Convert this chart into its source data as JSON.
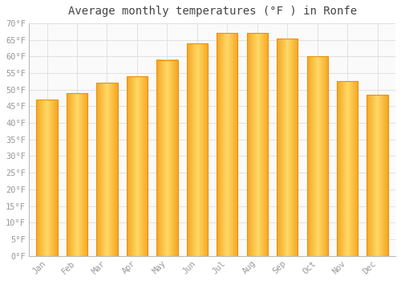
{
  "title": "Average monthly temperatures (°F ) in Ronfe",
  "months": [
    "Jan",
    "Feb",
    "Mar",
    "Apr",
    "May",
    "Jun",
    "Jul",
    "Aug",
    "Sep",
    "Oct",
    "Nov",
    "Dec"
  ],
  "values": [
    47,
    49,
    52,
    54,
    59,
    64,
    67,
    67,
    65.5,
    60,
    52.5,
    48.5
  ],
  "bar_color_left": "#F5A623",
  "bar_color_center": "#FFD966",
  "bar_color_right": "#F5A623",
  "bar_edge_color": "#E8920A",
  "background_color": "#FFFFFF",
  "plot_bg_color": "#FAFAFA",
  "grid_color": "#DDDDDD",
  "tick_label_color": "#999999",
  "title_color": "#444444",
  "ylim": [
    0,
    70
  ],
  "yticks": [
    0,
    5,
    10,
    15,
    20,
    25,
    30,
    35,
    40,
    45,
    50,
    55,
    60,
    65,
    70
  ],
  "ytick_labels": [
    "0°F",
    "5°F",
    "10°F",
    "15°F",
    "20°F",
    "25°F",
    "30°F",
    "35°F",
    "40°F",
    "45°F",
    "50°F",
    "55°F",
    "60°F",
    "65°F",
    "70°F"
  ],
  "title_fontsize": 10,
  "tick_fontsize": 7.5,
  "bar_width": 0.7,
  "figsize": [
    5.0,
    3.5
  ],
  "dpi": 100
}
